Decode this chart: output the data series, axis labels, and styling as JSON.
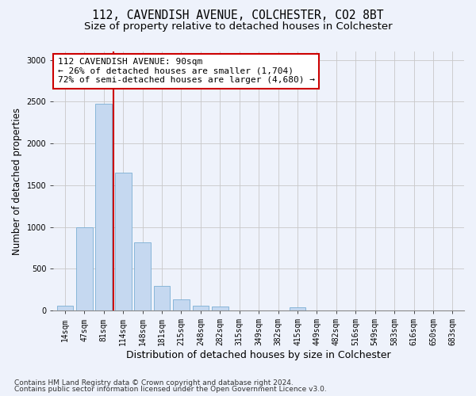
{
  "title": "112, CAVENDISH AVENUE, COLCHESTER, CO2 8BT",
  "subtitle": "Size of property relative to detached houses in Colchester",
  "xlabel": "Distribution of detached houses by size in Colchester",
  "ylabel": "Number of detached properties",
  "categories": [
    "14sqm",
    "47sqm",
    "81sqm",
    "114sqm",
    "148sqm",
    "181sqm",
    "215sqm",
    "248sqm",
    "282sqm",
    "315sqm",
    "349sqm",
    "382sqm",
    "415sqm",
    "449sqm",
    "482sqm",
    "516sqm",
    "549sqm",
    "583sqm",
    "616sqm",
    "650sqm",
    "683sqm"
  ],
  "values": [
    60,
    1000,
    2470,
    1650,
    820,
    300,
    130,
    55,
    45,
    0,
    0,
    0,
    35,
    0,
    0,
    0,
    0,
    0,
    0,
    0,
    0
  ],
  "bar_color": "#c5d8f0",
  "bar_edge_color": "#7bafd4",
  "vline_color": "#cc0000",
  "vline_x": 2.5,
  "annotation_title": "112 CAVENDISH AVENUE: 90sqm",
  "annotation_line1": "← 26% of detached houses are smaller (1,704)",
  "annotation_line2": "72% of semi-detached houses are larger (4,680) →",
  "annotation_box_color": "#cc0000",
  "ylim": [
    0,
    3100
  ],
  "footnote1": "Contains HM Land Registry data © Crown copyright and database right 2024.",
  "footnote2": "Contains public sector information licensed under the Open Government Licence v3.0.",
  "background_color": "#eef2fb",
  "grid_color": "#c8c8c8",
  "title_fontsize": 10.5,
  "subtitle_fontsize": 9.5,
  "xlabel_fontsize": 9,
  "ylabel_fontsize": 8.5,
  "tick_fontsize": 7,
  "annotation_fontsize": 8,
  "footnote_fontsize": 6.5
}
